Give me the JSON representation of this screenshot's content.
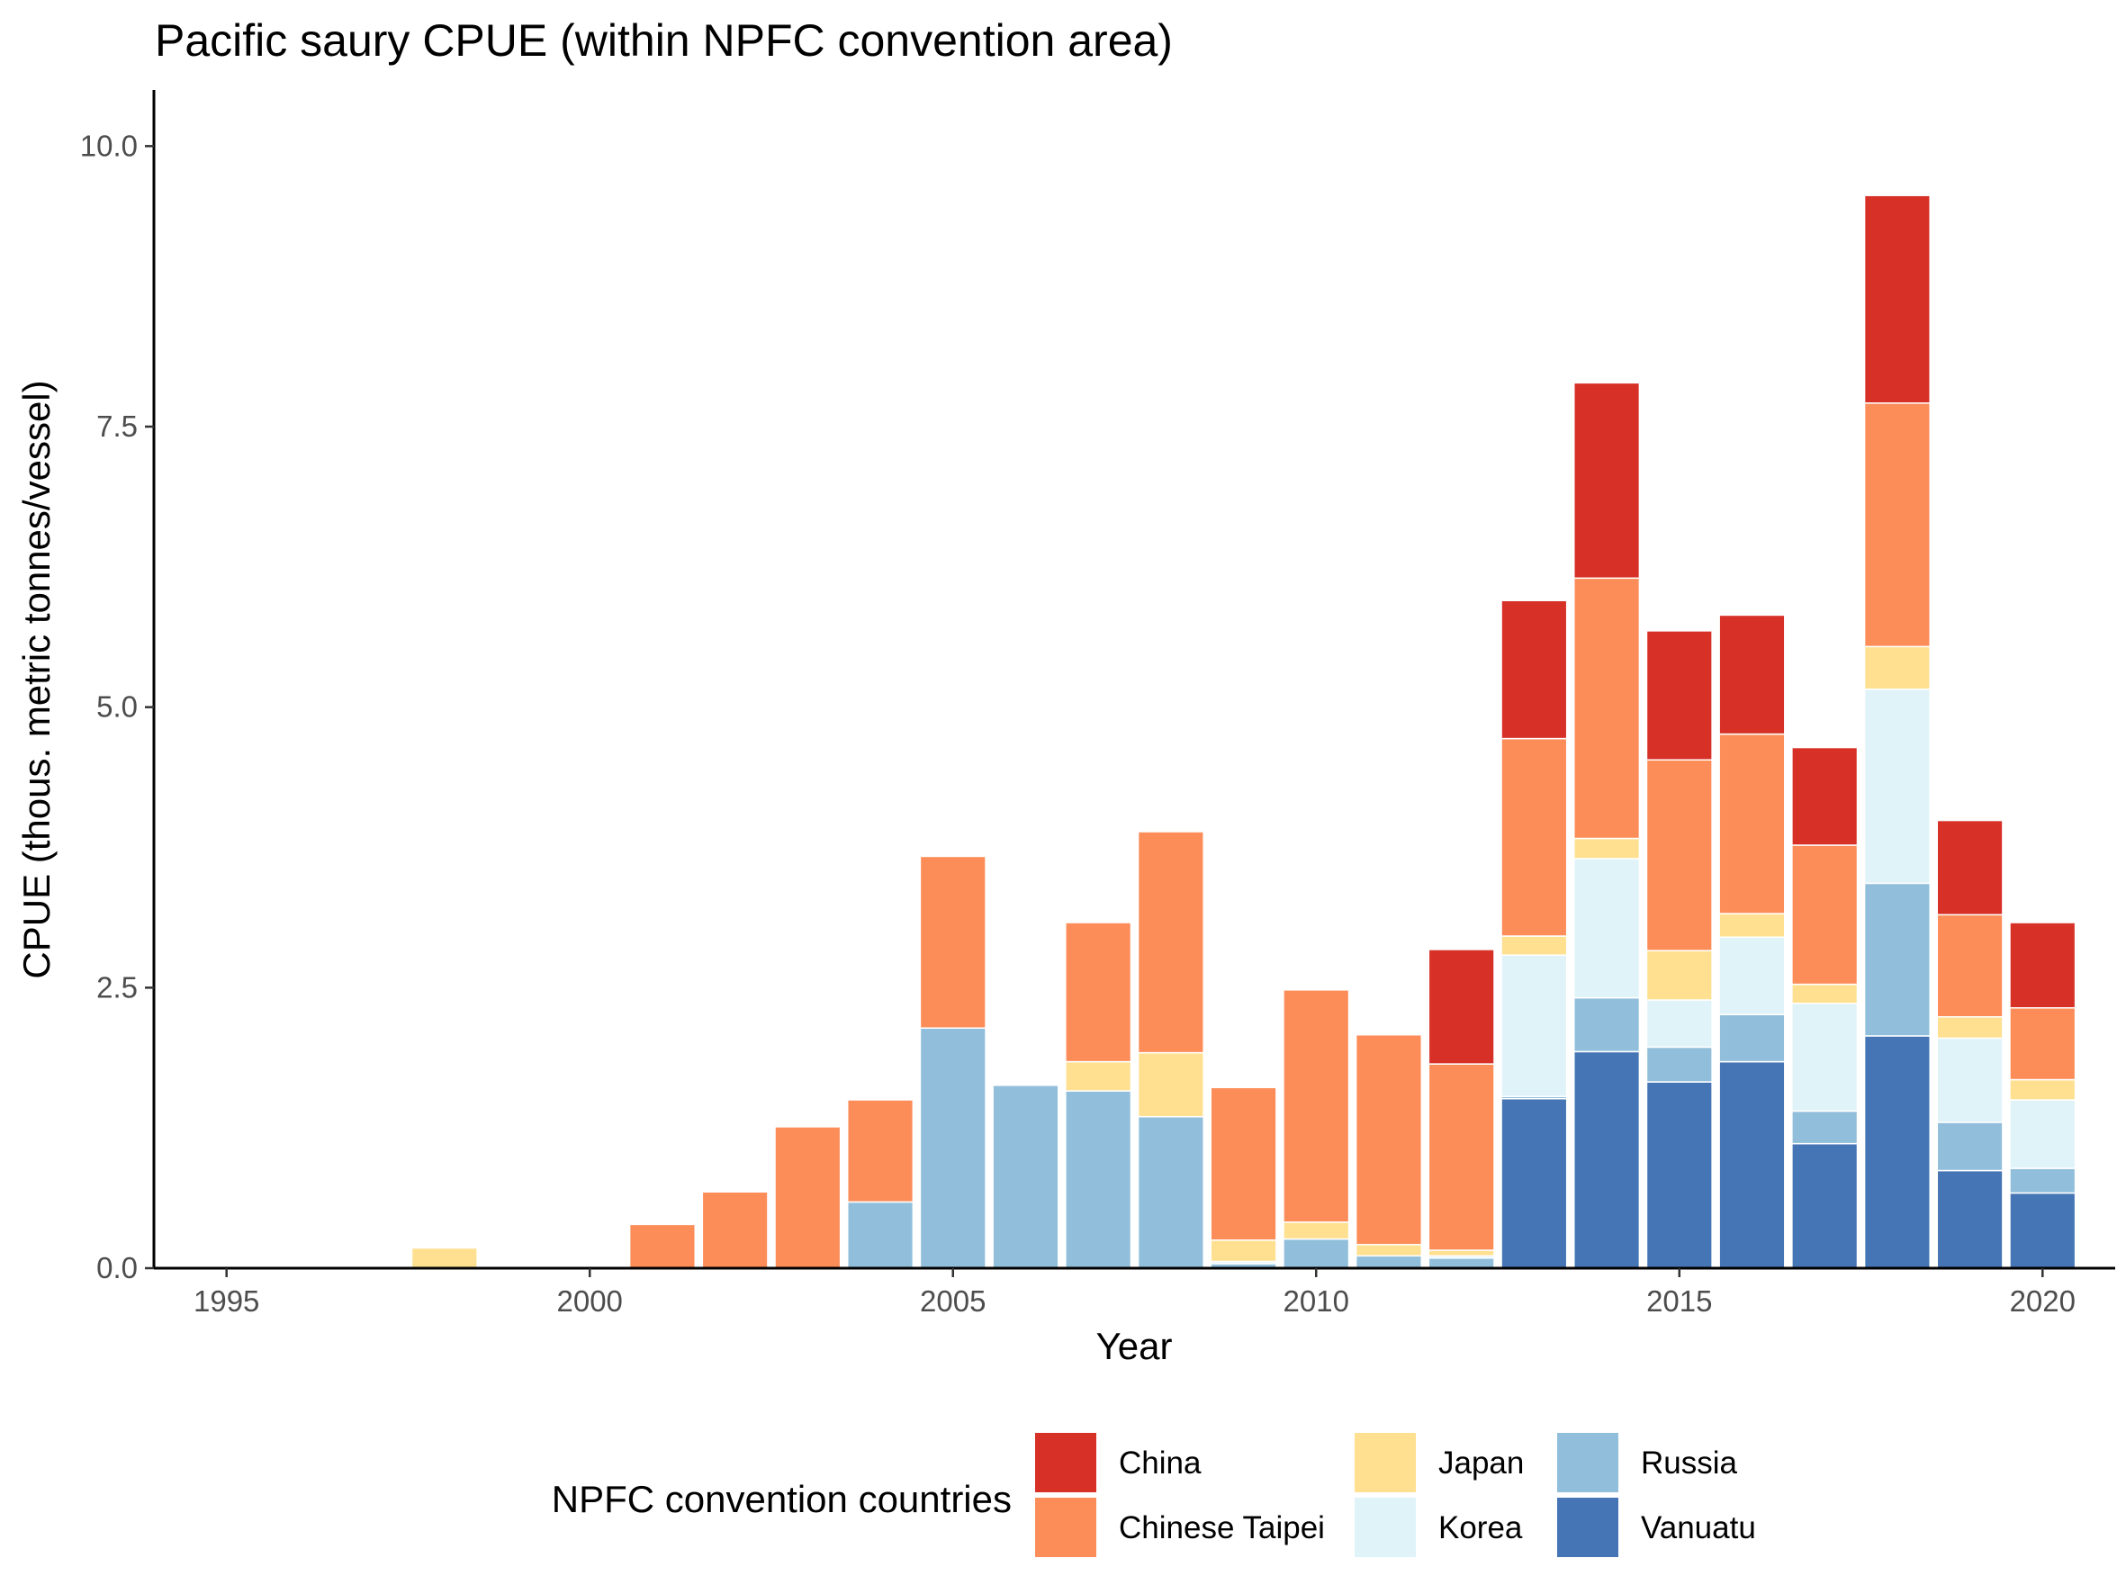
{
  "chart_data": {
    "type": "bar",
    "stacked": true,
    "title": "Pacific saury CPUE (within NPFC convention area)",
    "xlabel": "Year",
    "ylabel": "CPUE (thous. metric tonnes/vessel)",
    "xlim": [
      1994,
      2021
    ],
    "ylim": [
      0,
      10.5
    ],
    "xticks": [
      1995,
      2000,
      2005,
      2010,
      2015,
      2020
    ],
    "yticks": [
      0,
      2.5,
      5,
      7.5,
      10
    ],
    "ytick_labels": [
      "0.0",
      "2.5",
      "5.0",
      "7.5",
      "10.0"
    ],
    "grid": false,
    "legend_title": "NPFC convention countries",
    "legend_position": "bottom",
    "years": [
      1998,
      2001,
      2002,
      2003,
      2004,
      2005,
      2006,
      2007,
      2008,
      2009,
      2010,
      2011,
      2012,
      2013,
      2014,
      2015,
      2016,
      2017,
      2018,
      2019,
      2020
    ],
    "series": [
      {
        "name": "Vanuatu",
        "color": "#4575b4",
        "values": [
          0,
          0,
          0,
          0,
          0,
          0,
          0,
          0,
          0,
          0,
          0,
          0,
          0,
          1.51,
          1.93,
          1.66,
          1.84,
          1.11,
          2.07,
          0.87,
          0.67
        ]
      },
      {
        "name": "Russia",
        "color": "#91bfdb",
        "values": [
          0,
          0,
          0,
          0,
          0.59,
          2.14,
          1.63,
          1.58,
          1.35,
          0.04,
          0.26,
          0.11,
          0.09,
          0.02,
          0.48,
          0.31,
          0.42,
          0.29,
          1.36,
          0.43,
          0.22
        ]
      },
      {
        "name": "Korea",
        "color": "#e0f3f8",
        "values": [
          0,
          0,
          0,
          0,
          0,
          0,
          0,
          0,
          0,
          0.02,
          0,
          0,
          0.02,
          1.26,
          1.24,
          0.42,
          0.69,
          0.96,
          1.73,
          0.75,
          0.61
        ]
      },
      {
        "name": "Japan",
        "color": "#fee090",
        "values": [
          0.18,
          0,
          0,
          0,
          0,
          0,
          0,
          0.26,
          0.57,
          0.19,
          0.15,
          0.1,
          0.05,
          0.17,
          0.18,
          0.44,
          0.21,
          0.17,
          0.38,
          0.19,
          0.18
        ]
      },
      {
        "name": "Chinese Taipei",
        "color": "#fc8d59",
        "values": [
          0,
          0.39,
          0.68,
          1.26,
          0.91,
          1.53,
          0,
          1.24,
          1.97,
          1.36,
          2.07,
          1.87,
          1.66,
          1.76,
          2.32,
          1.7,
          1.6,
          1.24,
          2.17,
          0.91,
          0.64
        ]
      },
      {
        "name": "China",
        "color": "#d73027",
        "values": [
          0,
          0,
          0,
          0,
          0,
          0,
          0,
          0,
          0,
          0,
          0,
          0,
          1.02,
          1.23,
          1.74,
          1.15,
          1.06,
          0.87,
          1.85,
          0.84,
          0.76
        ]
      }
    ],
    "legend_order": [
      "China",
      "Chinese Taipei",
      "Japan",
      "Korea",
      "Russia",
      "Vanuatu"
    ]
  }
}
